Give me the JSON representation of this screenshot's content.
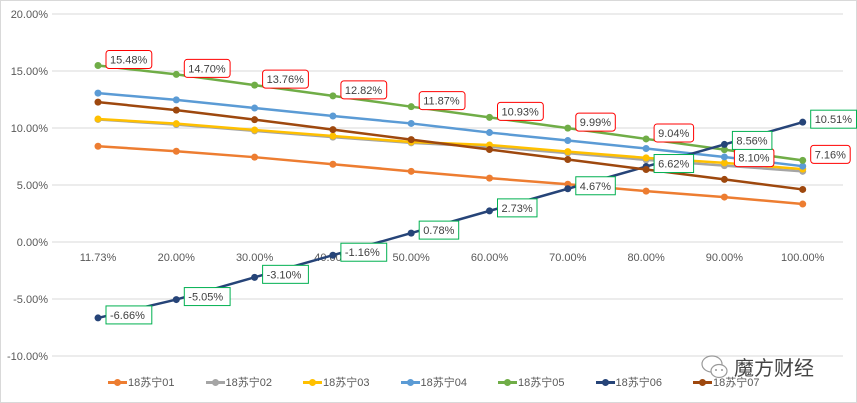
{
  "chart_data": {
    "type": "line",
    "title": "",
    "xlabel": "",
    "ylabel": "",
    "categories": [
      "11.73%",
      "20.00%",
      "30.00%",
      "40.00%",
      "50.00%",
      "60.00%",
      "70.00%",
      "80.00%",
      "90.00%",
      "100.00%"
    ],
    "ylim": [
      -10,
      20
    ],
    "y_ticks": [
      "20.00%",
      "15.00%",
      "10.00%",
      "5.00%",
      "0.00%",
      "-5.00%",
      "-10.00%"
    ],
    "y_tick_values": [
      20,
      15,
      10,
      5,
      0,
      -5,
      -10
    ],
    "grid": true,
    "legend_position": "bottom",
    "series": [
      {
        "name": "18苏宁01",
        "color": "#ED7D31",
        "values": [
          8.4,
          7.96,
          7.44,
          6.82,
          6.2,
          5.6,
          5.07,
          4.46,
          3.94,
          3.33
        ],
        "labeled": false
      },
      {
        "name": "18苏宁02",
        "color": "#A5A5A5",
        "values": [
          10.75,
          10.3,
          9.75,
          9.2,
          8.7,
          8.35,
          7.8,
          7.2,
          6.7,
          6.2
        ],
        "labeled": false
      },
      {
        "name": "18苏宁03",
        "color": "#FFC000",
        "values": [
          10.79,
          10.38,
          9.83,
          9.3,
          8.77,
          8.51,
          7.93,
          7.38,
          6.94,
          6.39
        ],
        "labeled": false
      },
      {
        "name": "18苏宁04",
        "color": "#5B9BD5",
        "values": [
          13.06,
          12.47,
          11.75,
          11.05,
          10.4,
          9.6,
          8.9,
          8.2,
          7.46,
          6.65
        ],
        "labeled": false
      },
      {
        "name": "18苏宁05",
        "color": "#70AD47",
        "values": [
          15.48,
          14.7,
          13.76,
          12.82,
          11.87,
          10.93,
          9.99,
          9.04,
          8.1,
          7.16
        ],
        "labeled": true,
        "label_border": "#FF0000"
      },
      {
        "name": "18苏宁06",
        "color": "#264478",
        "values": [
          -6.66,
          -5.05,
          -3.1,
          -1.16,
          0.78,
          2.73,
          4.67,
          6.62,
          8.56,
          10.51
        ],
        "labeled": true,
        "label_border": "#00B050"
      },
      {
        "name": "18苏宁07",
        "color": "#9E480E",
        "values": [
          12.27,
          11.57,
          10.73,
          9.86,
          8.98,
          8.11,
          7.24,
          6.36,
          5.49,
          4.61
        ],
        "labeled": false
      }
    ]
  },
  "watermark": "魔方财经"
}
